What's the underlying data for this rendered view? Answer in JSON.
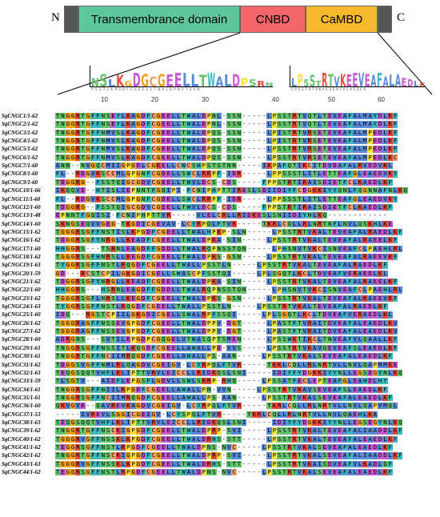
{
  "domain_bar": {
    "n_label": "N",
    "c_label": "C",
    "tm_label": "Transmembrance domain",
    "cnbd_label": "CNBD",
    "camBD_label": "CaMBD",
    "colors": {
      "tm": "#5cc89b",
      "cnbd": "#f2666a",
      "cambd": "#f6b92c",
      "cap": "#555555"
    }
  },
  "ruler": {
    "ticks": [
      "10",
      "20",
      "30",
      "40",
      "50",
      "60"
    ]
  },
  "logo": {
    "left_motif": "NSLKGDGCGEELLTWALDPSRN",
    "right_motif": "LPSSTRTVKEEVEAFALAEDLK",
    "left_sub": "PSSTLKPGDFCGEELLTWALDPNSTSSN",
    "right_sub": "LPSSTRTVKAEVEAFALAEDLK"
  },
  "colors": {
    "G": "#f0a31c",
    "P": "#f6e23a",
    "C": "#eda06f",
    "ST": "#63c46d",
    "NQ": "#63c46d",
    "hydrophobic": "#5a8bd8",
    "aromatic": "#3cb8c0",
    "basic": "#e84b3a",
    "acidic": "#c65bd2",
    "H": "#3cb8c0"
  },
  "alignment": [
    {
      "name": "SgCNGC1/1-62",
      "seq": "TNGGRTGFFNSEYLKAGDFCGEELLTWALDPNL-SSN-----LPSSTRTVQTLTEVEAFALMAYDLKF"
    },
    {
      "name": "SgCNGC2/1-62",
      "seq": "TNGGRTGFFNSEYLKAGDFCGEELLTWALDPNL-SSN-----LPSSTRTVQTLTEVEAFALMAYDLKF"
    },
    {
      "name": "SgCNGC3/1-62",
      "seq": "TNGGRTGFFNMVSLKAGDFCGEELLTWALDPQS-SSN-----LPISTRTVRSETEVEAFALMPEDLKF"
    },
    {
      "name": "SgCNGC4/1-62",
      "seq": "TNGGRTGFFNMVSLKAGDFCGEELLTWALDPQS-SSN-----LPISTRTVRSETEVEAFALMPEDLKF"
    },
    {
      "name": "SgCNGC5/1-62",
      "seq": "TNGGRTGFFNMVSLKAGDFCGEELLTWALDPQS-SSN-----LPSSTRTVRSETEVEAFALMPEDLKF"
    },
    {
      "name": "SgCNGC6/1-62",
      "seq": "TNGGRTGFFNMVSLKAGDFCGEELLTWALDPQS-SSN-----LPSSTRTVRSETEVEAFALMPEDLKC"
    },
    {
      "name": "SgCNGC7/1-60",
      "seq": "ANN--NVGQCMIIGPGDLCGKELLCWCSHPSTSTNN-----IKPAFQTIKCITDVDAFALRVDDVKL"
    },
    {
      "name": "SgCNGC8/1-60",
      "seq": "FL--RDGVKSCCMLGPGNFCGDELLSWCLRRPF-IDR-----LPPSSSTLITLETTEAFGLEAEDVKY"
    },
    {
      "name": "SgCNGC9/1-60",
      "seq": "TDGGRG--FSSTQIGCGDVCGEELLTWVLDCS-CDS-----FPPSTRTIRAISDIETFCLKAEDLKF"
    },
    {
      "name": "SgCNGC10/1-66",
      "seq": "IKQQVE--HTISLIEPNNTFGQIPI-FCNIPHPTTIRESLSDIIDIYFCDGKKIYYQNLFQGNNAFNLKQ"
    },
    {
      "name": "SgCNGC11/1-60",
      "seq": "FL--RDGVKSCCMLGPGNFCGDELLSWCLRRPF-IDR-----LPPSSSTLITLETTEAFGLEAEDVKY"
    },
    {
      "name": "SgCNGC12/1-60",
      "seq": "TDGGRG--FSSTQIGCGDVCGEELLTWVLDCS-CDS-----FPPSTRTIRAISDIETFCLKAEDLKF"
    },
    {
      "name": "SgCNGC13/1-48",
      "seq": "EPNNTFGQISI-FCNIPHPTTVR-----VLELCRLLRIDKESLSNIIDIYNLKQ------------"
    },
    {
      "name": "SgCNGC14/1-60",
      "seq": "SKNGSEQVVGEG-TKGDICGEVAV-LCYRPQLFTVR-----TKRLCQLLRLNRTNFLNVLQSKHLKE"
    },
    {
      "name": "SgCNGC15/1-62",
      "seq": "TGGGRSGFFNSTISLKPGDFCGEELLTWALHPKP-SLN-----LPSSTRTVKALTEVEAFALRAEDLKF"
    },
    {
      "name": "SgCNGC16/1-62",
      "seq": "TDGGRSGFYNRGLLKEADFCGEELLTWALDPKA-SIN-----LPSSTRTVKALTEVEAFALRAEELKF"
    },
    {
      "name": "SgCNGC17/1-60",
      "seq": "HHGGRS---TSRNLEAGDFFGDDLLTWALRQPNSSTQN-----LPHSNVTVKCISNVEAFCLPAEHLRL"
    },
    {
      "name": "SgCNGC18/1-62",
      "seq": "TGGGRSGFHNRSLLKEGDFCGEELLTWALDPKS-GSN-----LPSSTRTVKALTEVEAFALRAEEVKF"
    },
    {
      "name": "SgCNGC19/1-63",
      "seq": "TYGGRSGFFNSTLRQGDFCGEELLTWALLPSSTLN-----LPSSTRTVKALTEVEAFALRAEDLKF"
    },
    {
      "name": "SgCNGC20/1-59",
      "seq": "GD---RCSTCPILGKGDICGELLSWASCPFSSTQI-----LPLSGQTLKCLTDVEAFVERAEDLKL"
    },
    {
      "name": "SgCNGC21/1-62",
      "seq": "TDGGRSGFYNRGLLKEADFCGEELLTWALDPKA-SIN-----LPSSTRTVKALTEVEAFALRAEELKF"
    },
    {
      "name": "SgCNGC22/1-60",
      "seq": "HHGGRS---HSRNLEAGDFFGDDLLTWALRQPNSSTQN-----LPHSNVTVKCISNVEAFCLPAEHLRL"
    },
    {
      "name": "SgCNGC23/1-62",
      "seq": "TGGGRSGFLNRSLLKEGDFCGEELLTWALDPKS-GSN-----LPSSTRTVKALTEVEAFALRAEEVKF"
    },
    {
      "name": "SgCNGC24/1-63",
      "seq": "TYGGRSGFFNSTLRQGDFCGEELLTWALLPSSTLN-----LPSSTRTVKALTEVEAFALRAEDLKF"
    },
    {
      "name": "SgCNGC25/1-60",
      "seq": "IDQ---RGSTCPIILGKGDICGELLSWALRPFSSQI-----LPLSGQTLKCLTDVEAFVERAEDLKL"
    },
    {
      "name": "SgCNGC26/1-62",
      "seq": "TGGGRAGFFNSSEVGPGDFCGEELLTWALDPPV-DGT-----LPASTFTVRAITDVEAFALEAEDLKV"
    },
    {
      "name": "SgCNGC27/1-62",
      "seq": "TGGGRAGFFNSSEVGPGDFCGEELLTWALDPPV-DGT-----LPASTFTVRAITDVEAFALEAEDLKV"
    },
    {
      "name": "SgCNGC28/1-60",
      "seq": "ADRGNS---SVTILEPGDPCGQGELVTWASQPTSMEN-----LPSSWKTIKCLTNVEAFVLQAALLKF"
    },
    {
      "name": "SgCNGC29/1-61",
      "seq": "TNGGRSGFFNSSITLKQGDFCGEELLAWALLPD-VVS-----LPSSTRTVKAVQEVEAFSLEAEDLKF"
    },
    {
      "name": "SgCNGC30/1-61",
      "seq": "TNGGRTGFFNCIIMRQGDFCGEELLAWALLPS-AAN-----LPSSTRTVKALSEVEAFALEAEDLKF"
    },
    {
      "name": "SgCNGC31/1-62",
      "seq": "TDGGSVGFFNMLRLQAGDVCGEIGV-LCYRPQLFTVR-----TKKLCQLLRLNRTVLLNVLQAPMMKE"
    },
    {
      "name": "SgCNGC32/1-63",
      "seq": "TEQGSQQTVHFLKLIPTTVRVLEICCLLRIDKQSLSNI-----IDIYFYDGKKIYYNLLEGSDGYNLKQ"
    },
    {
      "name": "SgCNGC33/1-59",
      "seq": "TLSGTV---AIDFLEPGSFLGDVLLSWLSRRP-RHQ-----LPSSATFECLEPTEAFGLDAHDLHY"
    },
    {
      "name": "SgCNGC34/1-61",
      "seq": "TNGGRSGFFNIILKPGDFCGEELLAWALLPN-VVN-----LPSSTRTVKAVSEVEAFSLEAEDLKF"
    },
    {
      "name": "SgCNGC35/1-61",
      "seq": "TNGGRSGFFNCIIMRQGDFCGEELLAWALLPS-AAN-----LPSSTRTVKALSEVEAFALEAEDLKF"
    },
    {
      "name": "SgCNGC36/1-60",
      "seq": "QKVGVE--QAVREVKAGDVCGEIGV-LCYRPQLFTVR-----TKRLCQLLRLNRTVLLNVLQAPVMQL"
    },
    {
      "name": "SgCNGC37/1-53",
      "seq": "-----IVREVLSGGICGEIGV-LCYSPQLFTVR-----TKRLCQLLRLNRTVLLNVLQAEHLKA"
    },
    {
      "name": "SgCNGC38/1-63",
      "seq": "TEQGSQQTVHFLKLIPTTVRVLEICCLLRIDKQSLSNI-----IDIYFYDGKKIYYNLLEGSDGYNLKQ"
    },
    {
      "name": "SgCNGC39/1-62",
      "seq": "TNGGRTGFFNSCKIGPGDFCGEELLTWALDPRP-SVI-----LPSSTRTVKALTEVEAFALIAADDLKF"
    },
    {
      "name": "SgCNGC40/1-62",
      "seq": "TGGGRVGFFNSSKLKPGDFCGEELLTWALDRHS-STT-----LPSSTRTVKALTEVEAFALEAEDLKF"
    },
    {
      "name": "SgCNGC41/1-62",
      "seq": "TEGGRSGFFNSTLRPGDFCGEELLTWALDPNS-NVC-----LPSSTRTVKALSEVEAFALEAEDLKF"
    },
    {
      "name": "SgCNGC42/1-62",
      "seq": "TNGGRTGFFNSCKIGPGDFCGEELLTWALDPRP-SVI-----LPSSTRTVKALSEVEAFALIAADDLKF"
    },
    {
      "name": "SgCNGC43/1-63",
      "seq": "TGGGRVGFFNSSKLKPGDFCGEELLTWALDRHS-STT-----LPSSTRTVKAISDVEAFVLKADLQF"
    },
    {
      "name": "SgCNGC44/1-62",
      "seq": "TEGGRSGFFNSTLRPGDFCGEELLTWALDPNS-NVC-----LPSSTRTVKALSEVEAFALEAEDLKF"
    }
  ]
}
